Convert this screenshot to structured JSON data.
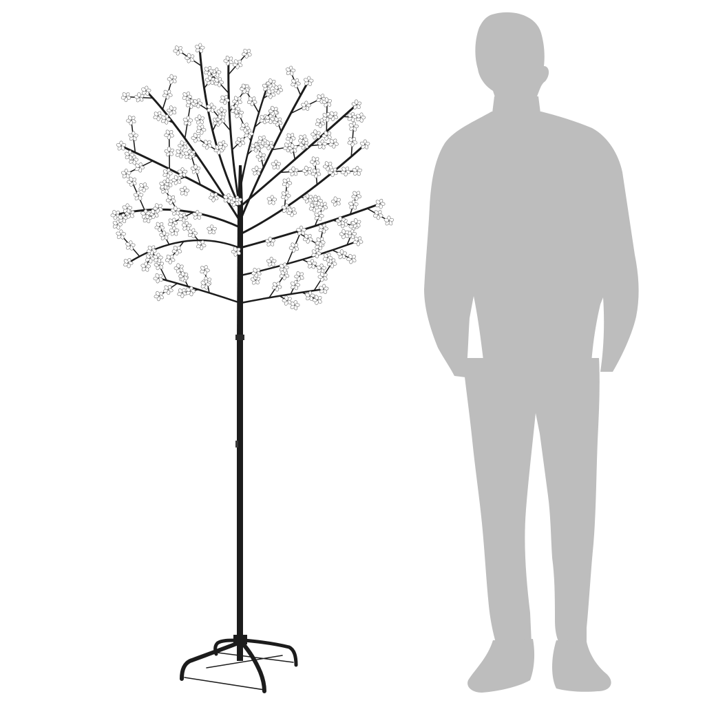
{
  "scene": {
    "background_color": "#ffffff",
    "subjects": [
      {
        "name": "led-cherry-blossom-tree",
        "trunk_color": "#1c1c1c",
        "blossom_fill": "#ffffff",
        "blossom_outline": "#6e6e6e",
        "base_type": "four-leg-stand"
      },
      {
        "name": "human-silhouette",
        "fill_color": "#bdbdbd"
      }
    ]
  }
}
